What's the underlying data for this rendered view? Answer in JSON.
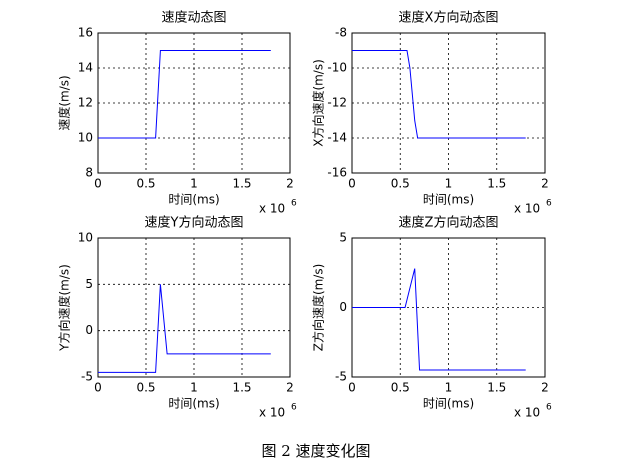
{
  "caption": "图 2  速度变化图",
  "chart_data": [
    {
      "type": "line",
      "title": "速度动态图",
      "x_label": "时间(ms)",
      "y_label": "速度(m/s)",
      "x_multiplier": "x 10",
      "x_multiplier_exponent": "6",
      "x": [
        0,
        0.6,
        0.65,
        1.8
      ],
      "values": [
        10,
        10,
        15,
        15
      ],
      "color": "#0000ff",
      "xlim": [
        0,
        2
      ],
      "xticks": [
        0,
        0.5,
        1,
        1.5,
        2
      ],
      "ylim": [
        8,
        16
      ],
      "yticks": [
        8,
        10,
        12,
        14,
        16
      ],
      "grid": true
    },
    {
      "type": "line",
      "title": "速度X方向动态图",
      "x_label": "时间(ms)",
      "y_label": "X方向速度(m/s)",
      "x_multiplier": "x 10",
      "x_multiplier_exponent": "6",
      "x": [
        0,
        0.57,
        0.6,
        0.65,
        0.68,
        1.8
      ],
      "values": [
        -9,
        -9,
        -10,
        -13,
        -14,
        -14
      ],
      "color": "#0000ff",
      "xlim": [
        0,
        2
      ],
      "xticks": [
        0,
        0.5,
        1,
        1.5,
        2
      ],
      "ylim": [
        -16,
        -8
      ],
      "yticks": [
        -16,
        -14,
        -12,
        -10,
        -8
      ],
      "grid": true
    },
    {
      "type": "line",
      "title": "速度Y方向动态图",
      "x_label": "时间(ms)",
      "y_label": "Y方向速度(m/s)",
      "x_multiplier": "x 10",
      "x_multiplier_exponent": "6",
      "x": [
        0,
        0.6,
        0.65,
        0.72,
        1.8
      ],
      "values": [
        -4.5,
        -4.5,
        5,
        -2.5,
        -2.5
      ],
      "color": "#0000ff",
      "xlim": [
        0,
        2
      ],
      "xticks": [
        0,
        0.5,
        1,
        1.5,
        2
      ],
      "ylim": [
        -5,
        10
      ],
      "yticks": [
        -5,
        0,
        5,
        10
      ],
      "grid": true
    },
    {
      "type": "line",
      "title": "速度Z方向动态图",
      "x_label": "时间(ms)",
      "y_label": "Z方向速度(m/s)",
      "x_multiplier": "x 10",
      "x_multiplier_exponent": "6",
      "x": [
        0,
        0.55,
        0.65,
        0.7,
        1.8
      ],
      "values": [
        0,
        0,
        2.8,
        -4.5,
        -4.5
      ],
      "color": "#0000ff",
      "xlim": [
        0,
        2
      ],
      "xticks": [
        0,
        0.5,
        1,
        1.5,
        2
      ],
      "ylim": [
        -5,
        5
      ],
      "yticks": [
        -5,
        0,
        5
      ],
      "grid": true
    }
  ]
}
